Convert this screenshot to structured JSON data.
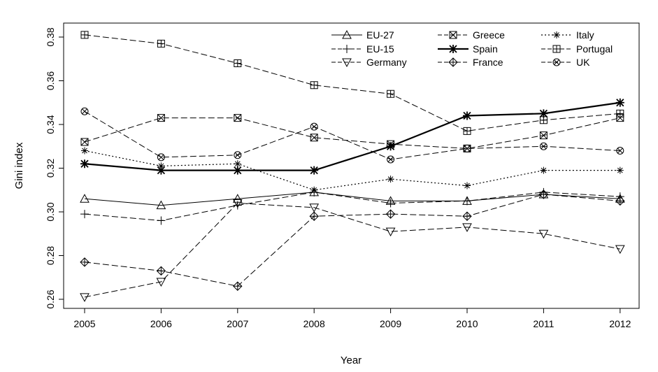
{
  "chart_data": {
    "type": "line",
    "title": "",
    "xlabel": "Year",
    "ylabel": "Gini index",
    "x": [
      "2005",
      "2006",
      "2007",
      "2008",
      "2009",
      "2010",
      "2011",
      "2012"
    ],
    "ylim": [
      0.256,
      0.382
    ],
    "yticks": [
      "0.26",
      "0.28",
      "0.30",
      "0.32",
      "0.34",
      "0.36",
      "0.38"
    ],
    "grid": false,
    "legend_position": "top-right",
    "series": [
      {
        "name": "EU-27",
        "marker": "triangle-up",
        "dash": "solid",
        "values": [
          0.306,
          0.303,
          0.306,
          0.309,
          0.305,
          0.305,
          0.308,
          0.306
        ]
      },
      {
        "name": "EU-15",
        "marker": "plus",
        "dash": "dashed",
        "values": [
          0.299,
          0.296,
          0.303,
          0.309,
          0.304,
          0.305,
          0.309,
          0.307
        ]
      },
      {
        "name": "Germany",
        "marker": "triangle-down",
        "dash": "dashed",
        "values": [
          0.261,
          0.268,
          0.304,
          0.302,
          0.291,
          0.293,
          0.29,
          0.283
        ]
      },
      {
        "name": "Greece",
        "marker": "square-x",
        "dash": "dashed",
        "values": [
          0.332,
          0.343,
          0.343,
          0.334,
          0.331,
          0.329,
          0.335,
          0.343
        ]
      },
      {
        "name": "Spain",
        "marker": "asterisk",
        "dash": "solid-bold",
        "values": [
          0.322,
          0.319,
          0.319,
          0.319,
          0.33,
          0.344,
          0.345,
          0.35
        ]
      },
      {
        "name": "France",
        "marker": "diamond-plus",
        "dash": "dashed",
        "values": [
          0.277,
          0.273,
          0.266,
          0.298,
          0.299,
          0.298,
          0.308,
          0.305
        ]
      },
      {
        "name": "Italy",
        "marker": "plus-x",
        "dash": "dotted",
        "values": [
          0.328,
          0.321,
          0.322,
          0.31,
          0.315,
          0.312,
          0.319,
          0.319
        ]
      },
      {
        "name": "Portugal",
        "marker": "square-plus",
        "dash": "dashed",
        "values": [
          0.381,
          0.377,
          0.368,
          0.358,
          0.354,
          0.337,
          0.342,
          0.345
        ]
      },
      {
        "name": "UK",
        "marker": "circle-x",
        "dash": "dashed",
        "values": [
          0.346,
          0.325,
          0.326,
          0.339,
          0.324,
          0.329,
          0.33,
          0.328
        ]
      }
    ]
  }
}
